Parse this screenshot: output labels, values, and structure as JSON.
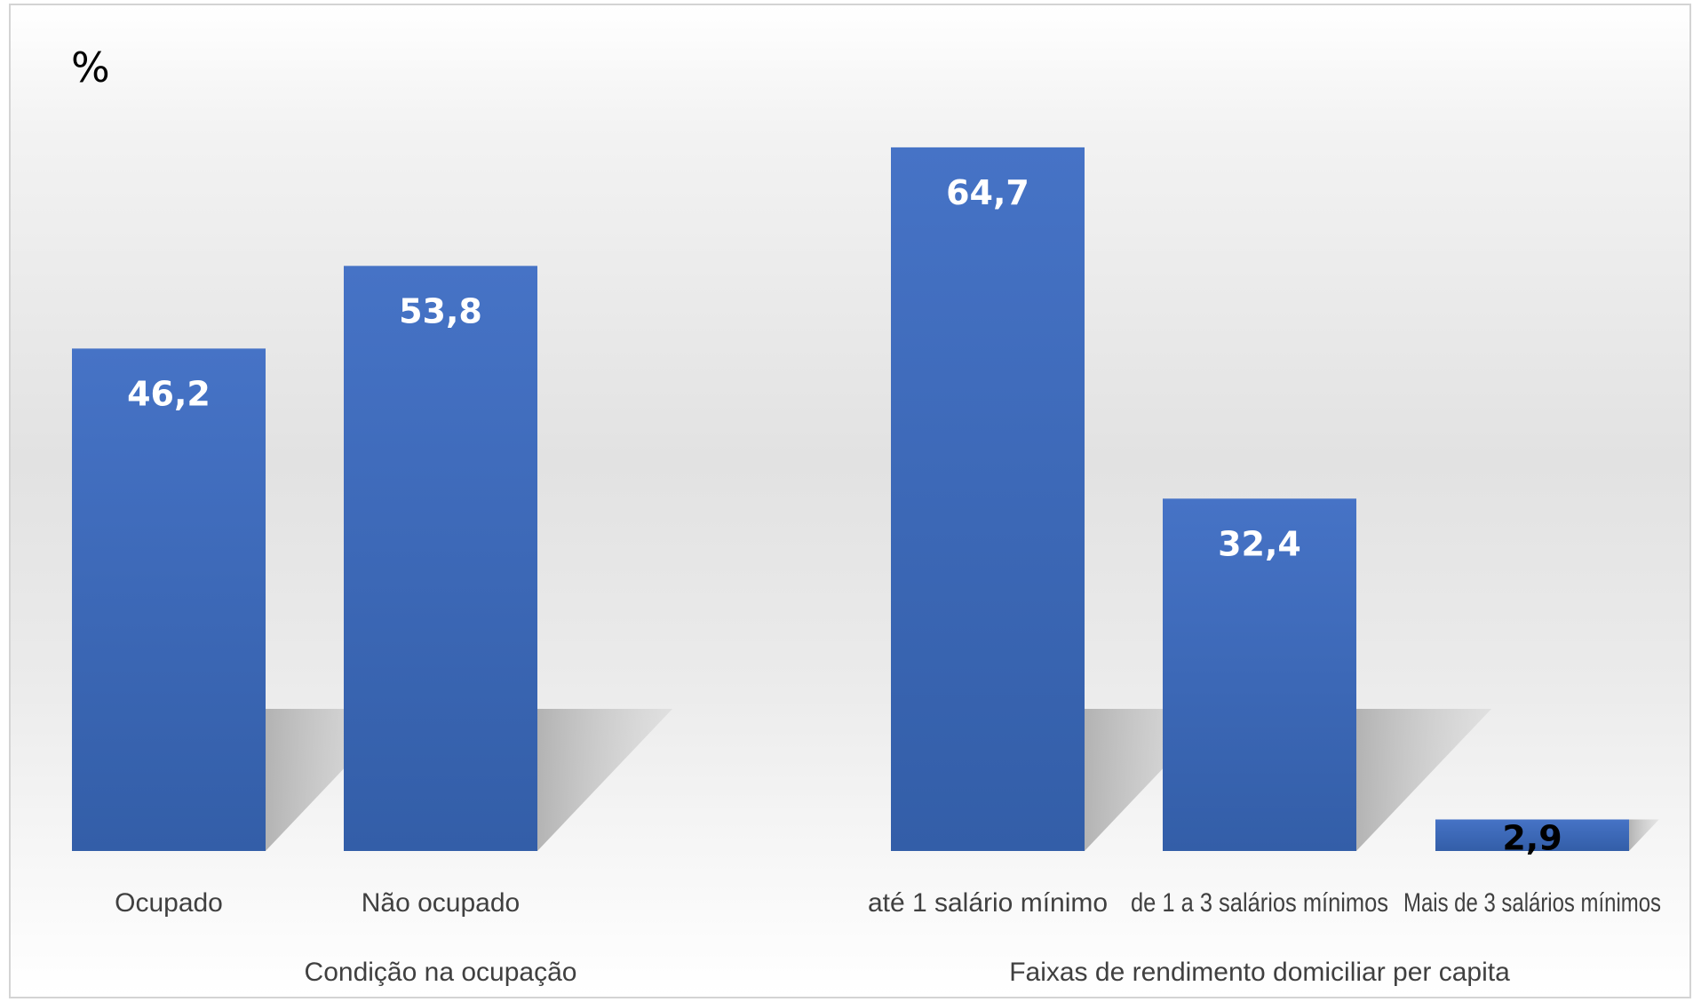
{
  "chart_data": {
    "type": "bar",
    "unit_label": "%",
    "ylim": [
      0,
      70
    ],
    "grid": false,
    "legend": "none",
    "bar_color": "#4472C4",
    "inside_label_color": "#ffffff",
    "outside_label_color": "#000000",
    "groups": [
      {
        "name": "Condição na ocupação",
        "categories": [
          "Ocupado",
          "Não ocupado"
        ],
        "values": [
          46.2,
          53.8
        ],
        "value_labels": [
          "46,2",
          "53,8"
        ]
      },
      {
        "name": "Faixas de rendimento domiciliar per capita",
        "categories": [
          "até 1 salário mínimo",
          "de 1 a 3 salários mínimos",
          "Mais de 3 salários mínimos"
        ],
        "values": [
          64.7,
          32.4,
          2.9
        ],
        "value_labels": [
          "64,7",
          "32,4",
          "2,9"
        ]
      }
    ]
  }
}
